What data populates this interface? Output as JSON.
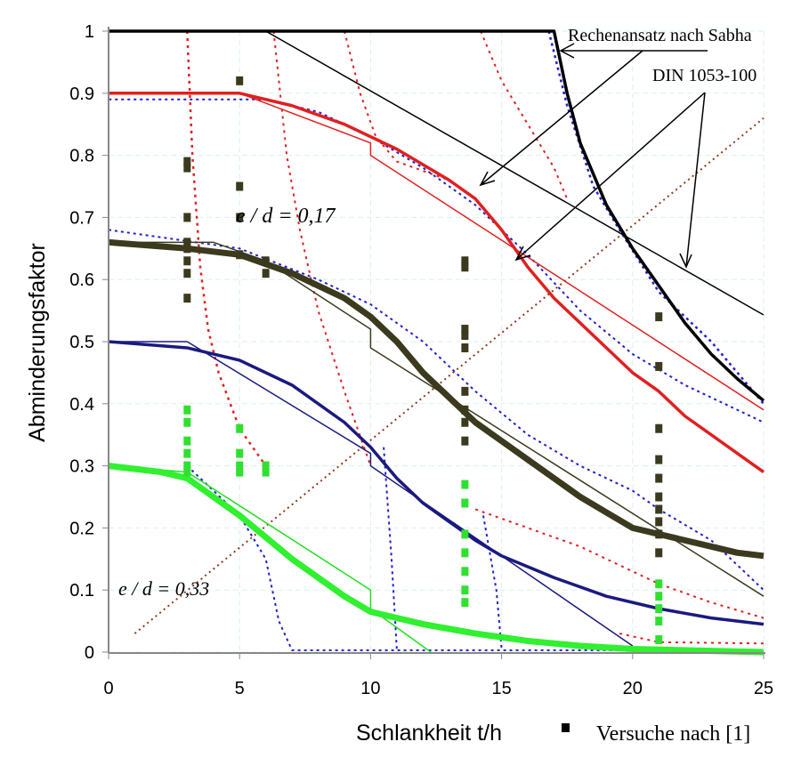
{
  "chart_data": {
    "type": "line",
    "xlabel": "Schlankheit t/h",
    "ylabel": "Abminderungsfaktor",
    "xlim": [
      0,
      25
    ],
    "ylim": [
      0,
      1
    ],
    "xticks": [
      "0",
      "5",
      "10",
      "15",
      "20",
      "25"
    ],
    "yticks": [
      "0",
      "0.1",
      "0.2",
      "0.3",
      "0.4",
      "0.5",
      "0.6",
      "0.7",
      "0.8",
      "0.9",
      "1"
    ],
    "grid": true,
    "annotations": {
      "sabha": "Rechenansatz nach Sabha",
      "din": "DIN 1053-100",
      "ed017": "e / d = 0,17",
      "ed033": "e / d = 0,33"
    },
    "legend": {
      "label": "Versuche nach [1]",
      "position": "bottom-right"
    },
    "series": [
      {
        "name": "brown-dotted-diagonal",
        "color": "#8b3a1e",
        "width": 2,
        "dash": "2 4",
        "x": [
          1,
          25
        ],
        "y": [
          0.03,
          0.86
        ]
      },
      {
        "name": "red-dotted-1",
        "color": "#e02020",
        "width": 2.5,
        "dash": "3 5",
        "x": [
          3,
          3.2,
          3.5,
          3.8,
          4.2,
          5,
          6
        ],
        "y": [
          1,
          0.8,
          0.62,
          0.52,
          0.45,
          0.36,
          0.3
        ]
      },
      {
        "name": "red-dotted-2",
        "color": "#e02020",
        "width": 2,
        "dash": "3 5",
        "x": [
          6.3,
          6.8,
          7.3,
          8,
          9,
          10
        ],
        "y": [
          1,
          0.8,
          0.68,
          0.55,
          0.42,
          0.3
        ]
      },
      {
        "name": "red-dotted-3",
        "color": "#e02020",
        "width": 2,
        "dash": "3 5",
        "x": [
          9,
          9.6,
          10.2,
          11,
          13
        ],
        "y": [
          1,
          0.9,
          0.83,
          0.79,
          0.76
        ]
      },
      {
        "name": "red-dotted-4",
        "color": "#e02020",
        "width": 2,
        "dash": "3 5",
        "x": [
          14.2,
          15,
          16,
          17,
          17.5
        ],
        "y": [
          1,
          0.92,
          0.85,
          0.78,
          0.73
        ]
      },
      {
        "name": "red-dotted-5",
        "color": "#e02020",
        "width": 2,
        "dash": "3 5",
        "x": [
          14,
          16,
          18,
          21,
          23,
          25
        ],
        "y": [
          0.23,
          0.2,
          0.17,
          0.11,
          0.08,
          0.055
        ]
      },
      {
        "name": "red-dotted-6",
        "color": "#e02020",
        "width": 2,
        "dash": "3 5",
        "x": [
          19.5,
          21,
          25
        ],
        "y": [
          0.03,
          0.016,
          0.014
        ]
      },
      {
        "name": "blue-dotted-1",
        "color": "#2020d0",
        "width": 2,
        "dash": "3 4",
        "x": [
          0,
          0,
          6,
          8,
          10,
          12,
          14,
          16,
          18,
          20,
          22,
          25
        ],
        "y": [
          1,
          0.89,
          0.89,
          0.87,
          0.83,
          0.78,
          0.72,
          0.64,
          0.55,
          0.48,
          0.43,
          0.37
        ]
      },
      {
        "name": "blue-dotted-2",
        "color": "#2020d0",
        "width": 2.5,
        "dash": "3 4",
        "x": [
          16.8,
          17.5,
          18.5,
          19.5,
          21,
          23,
          25
        ],
        "y": [
          1,
          0.88,
          0.75,
          0.68,
          0.58,
          0.5,
          0.4
        ]
      },
      {
        "name": "blue-dotted-3",
        "color": "#2020d0",
        "width": 2,
        "dash": "3 4",
        "x": [
          0,
          5,
          8,
          10,
          12,
          14,
          16,
          18,
          20,
          21,
          23,
          25
        ],
        "y": [
          0.68,
          0.65,
          0.6,
          0.56,
          0.5,
          0.42,
          0.35,
          0.3,
          0.26,
          0.23,
          0.18,
          0.1
        ]
      },
      {
        "name": "blue-dotted-4",
        "color": "#2020d0",
        "width": 2,
        "dash": "3 4",
        "x": [
          3,
          5,
          6,
          6.5,
          7,
          25
        ],
        "y": [
          0.3,
          0.22,
          0.15,
          0.05,
          0.003,
          0.003
        ]
      },
      {
        "name": "blue-dotted-5",
        "color": "#2020d0",
        "width": 2,
        "dash": "3 4",
        "x": [
          10.5,
          10.8,
          11
        ],
        "y": [
          0.33,
          0.15,
          0.005
        ]
      },
      {
        "name": "blue-dotted-6",
        "color": "#2020d0",
        "width": 2,
        "dash": "3 4",
        "x": [
          14.3,
          14.8,
          15
        ],
        "y": [
          0.22,
          0.1,
          0.005
        ]
      },
      {
        "name": "black-thin-din",
        "color": "#000",
        "width": 1.5,
        "dash": "",
        "x": [
          6,
          25
        ],
        "y": [
          1,
          0.543
        ]
      },
      {
        "name": "red-thin-din",
        "color": "#e02020",
        "width": 1.5,
        "dash": "",
        "x": [
          0,
          5,
          10,
          10,
          25
        ],
        "y": [
          0.9,
          0.9,
          0.82,
          0.8,
          0.39
        ]
      },
      {
        "name": "olive-thin-din",
        "color": "#3b3a1e",
        "width": 1.5,
        "dash": "",
        "x": [
          0,
          4,
          6,
          10,
          10,
          25
        ],
        "y": [
          0.66,
          0.66,
          0.63,
          0.52,
          0.49,
          0.09
        ]
      },
      {
        "name": "navy-thin-din",
        "color": "#1a1a80",
        "width": 1.5,
        "dash": "",
        "x": [
          0,
          3,
          10,
          10,
          20
        ],
        "y": [
          0.5,
          0.5,
          0.32,
          0.3,
          0.01
        ]
      },
      {
        "name": "green-thin-din",
        "color": "#20e020",
        "width": 1.5,
        "dash": "",
        "x": [
          0,
          3,
          10,
          10,
          12.3
        ],
        "y": [
          0.3,
          0.29,
          0.1,
          0.07,
          0
        ]
      },
      {
        "name": "black-thick-sabha",
        "color": "#000",
        "width": 3.5,
        "dash": "",
        "x": [
          0,
          17,
          17.5,
          18,
          19,
          20,
          21,
          22,
          23,
          24,
          25
        ],
        "y": [
          1,
          1,
          0.9,
          0.82,
          0.72,
          0.65,
          0.59,
          0.53,
          0.48,
          0.44,
          0.405
        ]
      },
      {
        "name": "red-thick-sabha",
        "color": "#e02020",
        "width": 3.5,
        "dash": "",
        "x": [
          0,
          5,
          7,
          9,
          11,
          13,
          14,
          15,
          16,
          17,
          18,
          19,
          20,
          21,
          22,
          23,
          24,
          25
        ],
        "y": [
          0.9,
          0.9,
          0.88,
          0.85,
          0.81,
          0.76,
          0.73,
          0.68,
          0.62,
          0.57,
          0.53,
          0.49,
          0.45,
          0.42,
          0.38,
          0.35,
          0.32,
          0.29
        ]
      },
      {
        "name": "olive-thick-sabha",
        "color": "#3b3a1e",
        "width": 7,
        "dash": "",
        "x": [
          0,
          3,
          5,
          7,
          9,
          10,
          11,
          12,
          13,
          14,
          15,
          16,
          17,
          18,
          19,
          20,
          21,
          22,
          23,
          24,
          25
        ],
        "y": [
          0.66,
          0.65,
          0.64,
          0.61,
          0.57,
          0.54,
          0.5,
          0.45,
          0.41,
          0.37,
          0.34,
          0.31,
          0.28,
          0.25,
          0.225,
          0.2,
          0.19,
          0.18,
          0.17,
          0.16,
          0.155
        ]
      },
      {
        "name": "navy-thick-sabha",
        "color": "#1a1a80",
        "width": 3.5,
        "dash": "",
        "x": [
          0,
          3,
          5,
          7,
          9,
          10,
          11,
          12,
          13,
          14,
          15,
          17,
          19,
          21,
          23,
          25
        ],
        "y": [
          0.5,
          0.49,
          0.47,
          0.43,
          0.37,
          0.33,
          0.28,
          0.24,
          0.21,
          0.18,
          0.155,
          0.12,
          0.09,
          0.07,
          0.055,
          0.045
        ]
      },
      {
        "name": "green-thick-sabha",
        "color": "#30f030",
        "width": 7,
        "dash": "",
        "x": [
          0,
          2,
          3,
          5,
          7,
          9,
          10,
          12,
          14,
          16,
          18,
          20,
          25
        ],
        "y": [
          0.3,
          0.29,
          0.28,
          0.22,
          0.15,
          0.09,
          0.065,
          0.045,
          0.03,
          0.018,
          0.01,
          0.005,
          0
        ]
      }
    ],
    "scatter": [
      {
        "name": "tests-olive",
        "color": "#3b3a1e",
        "x": [
          3,
          3,
          3,
          3,
          3,
          3,
          3,
          3,
          5,
          5,
          5,
          5,
          6,
          6,
          13.6,
          13.6,
          13.6,
          13.6,
          13.6,
          13.6,
          13.6,
          13.6,
          13.6,
          21,
          21,
          21,
          21,
          21,
          21,
          21,
          21,
          21,
          21
        ],
        "y": [
          0.57,
          0.61,
          0.63,
          0.65,
          0.66,
          0.7,
          0.78,
          0.79,
          0.92,
          0.75,
          0.7,
          0.64,
          0.63,
          0.61,
          0.62,
          0.63,
          0.52,
          0.51,
          0.49,
          0.42,
          0.39,
          0.37,
          0.34,
          0.54,
          0.46,
          0.36,
          0.31,
          0.28,
          0.25,
          0.23,
          0.21,
          0.19,
          0.16
        ]
      },
      {
        "name": "tests-green",
        "color": "#30e030",
        "x": [
          3,
          3,
          3,
          3,
          3,
          3,
          5,
          5,
          5,
          5,
          6,
          6,
          13.6,
          13.6,
          13.6,
          13.6,
          13.6,
          13.6,
          13.6,
          21,
          21,
          21,
          21,
          21
        ],
        "y": [
          0.39,
          0.37,
          0.34,
          0.32,
          0.3,
          0.29,
          0.36,
          0.32,
          0.3,
          0.29,
          0.3,
          0.29,
          0.27,
          0.24,
          0.19,
          0.16,
          0.13,
          0.1,
          0.08,
          0.11,
          0.09,
          0.07,
          0.05,
          0.02
        ]
      }
    ]
  }
}
